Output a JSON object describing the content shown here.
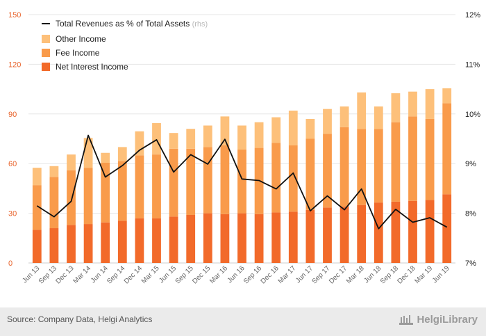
{
  "chart_data": {
    "type": "bar",
    "stacked": true,
    "categories": [
      "Jun 13",
      "Sep 13",
      "Dec 13",
      "Mar 14",
      "Jun 14",
      "Sep 14",
      "Dec 14",
      "Mar 15",
      "Jun 15",
      "Sep 15",
      "Dec 15",
      "Mar 16",
      "Jun 16",
      "Sep 16",
      "Dec 16",
      "Mar 17",
      "Jun 17",
      "Sep 17",
      "Dec 17",
      "Mar 18",
      "Jun 18",
      "Sep 18",
      "Dec 18",
      "Mar 19",
      "Jun 19"
    ],
    "series": [
      {
        "name": "Net Interest Income",
        "color": "#f26a2a",
        "values": [
          20,
          21,
          23,
          23.5,
          24.5,
          25.5,
          27,
          27,
          28,
          29,
          30,
          29.5,
          30,
          29.5,
          30.5,
          31,
          32,
          33.5,
          34,
          35,
          36.5,
          37,
          37.5,
          38,
          41.5
        ]
      },
      {
        "name": "Fee Income",
        "color": "#f99b4b",
        "values": [
          27,
          31,
          33,
          34,
          36,
          36,
          38,
          38.5,
          41,
          40,
          40,
          41.5,
          38.5,
          40,
          42,
          40,
          43,
          44.5,
          48,
          46,
          44.5,
          48,
          51,
          49,
          55
        ]
      },
      {
        "name": "Other Income",
        "color": "#fdc07a",
        "values": [
          10.5,
          6.5,
          9.5,
          18,
          6,
          8.5,
          14.5,
          19,
          9.5,
          12,
          13,
          17.5,
          14.5,
          15.5,
          15.5,
          21,
          12,
          15,
          12.5,
          22,
          13.5,
          17.5,
          15,
          18,
          9
        ]
      }
    ],
    "line": {
      "name": "Total Revenues as % of Total Assets",
      "axis": "right",
      "color": "#111111",
      "values": [
        8.15,
        7.93,
        8.24,
        9.57,
        8.73,
        8.96,
        9.27,
        9.48,
        8.83,
        9.18,
        8.99,
        9.49,
        8.69,
        8.66,
        8.49,
        8.81,
        8.05,
        8.35,
        8.07,
        8.49,
        7.69,
        8.08,
        7.82,
        7.91,
        7.72
      ]
    },
    "left_axis": {
      "ylim": [
        0,
        150
      ],
      "ticks": [
        "0",
        "30",
        "60",
        "90",
        "120",
        "150"
      ]
    },
    "right_axis": {
      "ylim": [
        7,
        12
      ],
      "ticks": [
        "7%",
        "8%",
        "9%",
        "10%",
        "11%",
        "12%"
      ]
    },
    "legend": {
      "placement": "top-left",
      "entries": [
        "Total Revenues as % of Total Assets",
        "Other Income",
        "Fee Income",
        "Net Interest Income"
      ],
      "line_note": "(rhs)"
    },
    "grid": true
  },
  "footer": {
    "source": "Source: Company Data, Helgi Analytics",
    "brand": "HelgiLibrary"
  }
}
